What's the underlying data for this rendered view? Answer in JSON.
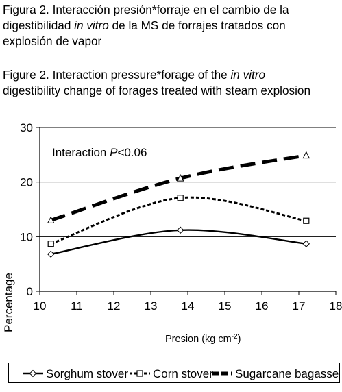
{
  "caption_es": {
    "l1": "Figura 2. Interacción presión*forraje en el cambio de la",
    "l2_a": "digestibilidad ",
    "l2_i": "in vitro",
    "l2_b": " de la MS de forrajes tratados con",
    "l3": "explosión de vapor"
  },
  "caption_en": {
    "l1_a": "Figure 2. Interaction pressure*forage of the ",
    "l1_i": "in vitro",
    "l2": "digestibility change of forages treated with steam explosion"
  },
  "chart_data": {
    "type": "line",
    "annotation": {
      "text": "Interaction ",
      "p": "P",
      "rest": "<0.06"
    },
    "xlabel": "Presion (kg cm",
    "xlabel_sup": "-2",
    "xlabel_end": ")",
    "ylabel": "Percentage",
    "xlim": [
      10,
      18
    ],
    "ylim": [
      0,
      30
    ],
    "xticks": [
      "10",
      "11",
      "12",
      "13",
      "14",
      "15",
      "16",
      "17",
      "18"
    ],
    "yticks": [
      "0",
      "10",
      "20",
      "30"
    ],
    "grid": "horizontal",
    "legend_position": "bottom",
    "series": [
      {
        "name": "Sorghum stover",
        "marker": "diamond",
        "line": "solid-thin",
        "x": [
          10.3,
          13.8,
          17.2
        ],
        "y": [
          6.8,
          11.2,
          8.7
        ]
      },
      {
        "name": "Corn stover",
        "marker": "square",
        "line": "dotted",
        "x": [
          10.3,
          13.8,
          17.2
        ],
        "y": [
          8.7,
          17.1,
          12.9
        ]
      },
      {
        "name": "Sugarcane bagasse",
        "marker": "triangle",
        "line": "dashed-thick",
        "x": [
          10.3,
          13.8,
          17.2
        ],
        "y": [
          13.0,
          20.7,
          24.9
        ]
      }
    ]
  }
}
